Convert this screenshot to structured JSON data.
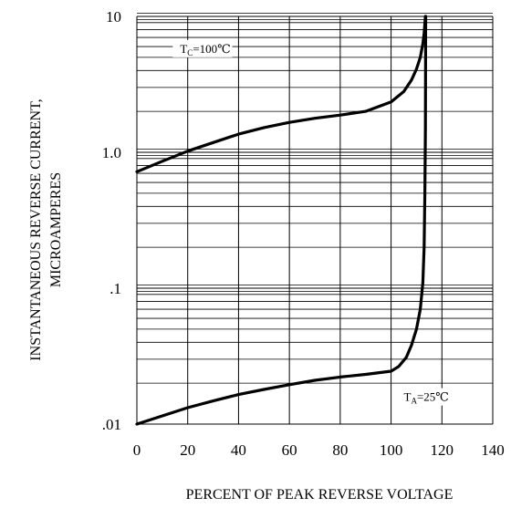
{
  "chart_data": {
    "type": "line",
    "title": "",
    "xlabel": "PERCENT OF PEAK REVERSE VOLTAGE",
    "ylabel": [
      "INSTANTANEOUS REVERSE CURRENT,",
      "MICROAMPERES"
    ],
    "xlim": [
      0,
      140
    ],
    "ylim": [
      0.01,
      10
    ],
    "yscale": "log",
    "grid": true,
    "x_ticks": [
      0,
      20,
      40,
      60,
      80,
      100,
      120,
      140
    ],
    "x_tick_labels": [
      "0",
      "20",
      "40",
      "60",
      "80",
      "100",
      "120",
      "140"
    ],
    "y_ticks": [
      0.01,
      0.1,
      1,
      10
    ],
    "y_tick_labels": [
      ".01",
      ".1",
      "1.0",
      "10"
    ],
    "series": [
      {
        "label_main": "T",
        "label_sub": "C",
        "label_rest": "=100℃",
        "color": "#000000",
        "points": [
          [
            0,
            0.72
          ],
          [
            10,
            0.86
          ],
          [
            20,
            1.02
          ],
          [
            30,
            1.18
          ],
          [
            40,
            1.36
          ],
          [
            50,
            1.52
          ],
          [
            60,
            1.66
          ],
          [
            70,
            1.78
          ],
          [
            80,
            1.88
          ],
          [
            90,
            2.0
          ],
          [
            100,
            2.35
          ],
          [
            105,
            2.8
          ],
          [
            108,
            3.4
          ],
          [
            110,
            4.1
          ],
          [
            111.5,
            5.0
          ],
          [
            112.5,
            6.3
          ],
          [
            113,
            7.5
          ],
          [
            113.5,
            10
          ]
        ]
      },
      {
        "label_main": "T",
        "label_sub": "A",
        "label_rest": "=25℃",
        "color": "#000000",
        "points": [
          [
            0,
            0.01
          ],
          [
            10,
            0.0115
          ],
          [
            20,
            0.0132
          ],
          [
            30,
            0.0148
          ],
          [
            40,
            0.0165
          ],
          [
            50,
            0.018
          ],
          [
            60,
            0.0195
          ],
          [
            70,
            0.021
          ],
          [
            80,
            0.0222
          ],
          [
            90,
            0.0232
          ],
          [
            100,
            0.0245
          ],
          [
            103,
            0.0265
          ],
          [
            106,
            0.031
          ],
          [
            108,
            0.038
          ],
          [
            110,
            0.05
          ],
          [
            111.5,
            0.07
          ],
          [
            112.5,
            0.11
          ],
          [
            113,
            0.2
          ],
          [
            113.3,
            0.5
          ],
          [
            113.5,
            1.5
          ],
          [
            113.6,
            10
          ]
        ]
      }
    ]
  }
}
